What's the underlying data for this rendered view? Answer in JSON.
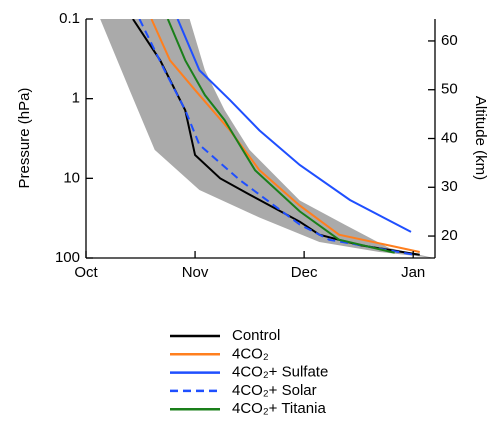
{
  "chart_data": {
    "type": "line",
    "ylabel": "Pressure (hPa)",
    "y2label": "Altitude (km)",
    "xlim": [
      0,
      3.2
    ],
    "xticks": [
      {
        "value": 0,
        "label": "Oct"
      },
      {
        "value": 1,
        "label": "Nov"
      },
      {
        "value": 2,
        "label": "Dec"
      },
      {
        "value": 3,
        "label": "Jan"
      }
    ],
    "ylim": [
      0.1,
      100
    ],
    "ylog": true,
    "y_inverted": true,
    "yticks": [
      0.1,
      1,
      10,
      100
    ],
    "y2lim": [
      15.5,
      64.5
    ],
    "y2ticks": [
      20,
      30,
      40,
      50,
      60
    ],
    "band": {
      "color": "#aaaaaa",
      "x": [
        0.13,
        0.4,
        0.63,
        1.04,
        1.59,
        2.14,
        2.69,
        3.19,
        2.78,
        2.37,
        1.96,
        1.5,
        1.27,
        1.09,
        0.95
      ],
      "values": [
        0.1,
        0.78,
        4.4,
        14,
        31,
        63,
        84,
        100,
        75,
        38,
        19,
        4.4,
        1.39,
        0.44,
        0.1
      ]
    },
    "series": [
      {
        "name": "Control",
        "color": "#000000",
        "dash": false,
        "x": [
          0.43,
          0.68,
          0.91,
          1.0,
          1.23,
          1.5,
          1.96,
          2.14,
          2.51,
          3.06
        ],
        "values": [
          0.1,
          0.33,
          1.4,
          5.1,
          10,
          16,
          35,
          51,
          69,
          91
        ]
      },
      {
        "name": "4CO₂",
        "color": "#ff7f1e",
        "dash": false,
        "x": [
          0.6,
          0.77,
          1.0,
          1.32,
          1.59,
          1.96,
          2.32,
          3.06
        ],
        "values": [
          0.1,
          0.33,
          0.78,
          2.5,
          7.9,
          22,
          51,
          84
        ]
      },
      {
        "name": "4CO₂+ Sulfate",
        "color": "#1f4fff",
        "dash": false,
        "x": [
          0.84,
          1.04,
          1.32,
          1.59,
          1.96,
          2.42,
          2.98
        ],
        "values": [
          0.1,
          0.44,
          1.04,
          2.5,
          6.8,
          18.7,
          47
        ]
      },
      {
        "name": "4CO₂+ Solar",
        "color": "#1f4fff",
        "dash": true,
        "x": [
          0.49,
          0.72,
          0.91,
          1.04,
          1.41,
          1.96,
          2.23,
          3.01
        ],
        "values": [
          0.1,
          0.44,
          1.39,
          3.8,
          10.5,
          38,
          59,
          91
        ]
      },
      {
        "name": "4CO₂+ Titania",
        "color": "#1a7f1a",
        "dash": false,
        "x": [
          0.75,
          0.91,
          1.09,
          1.27,
          1.55,
          1.96,
          2.32,
          2.83
        ],
        "values": [
          0.1,
          0.33,
          0.9,
          1.85,
          7.9,
          26,
          59,
          86
        ]
      }
    ]
  }
}
